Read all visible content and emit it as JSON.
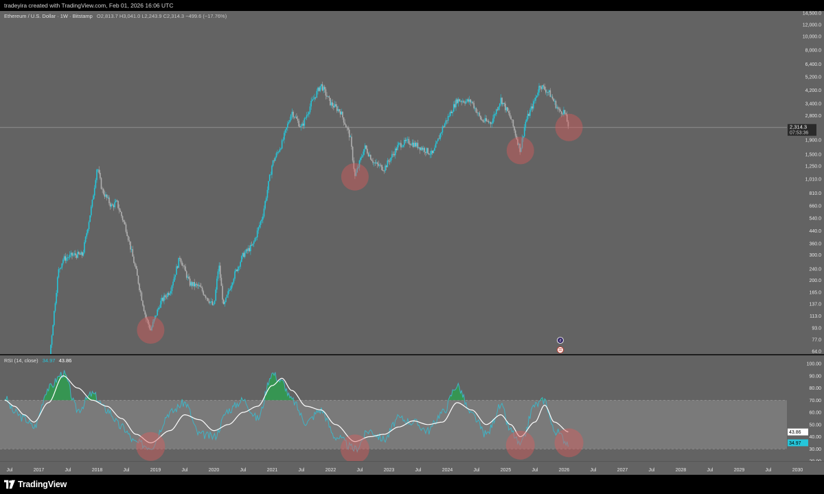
{
  "header": {
    "created_by": "tradeyira created with TradingView.com, Feb 01, 2026 16:06 UTC"
  },
  "footer": {
    "brand": "TradingView",
    "logo_icon": "tradingview-logo-icon"
  },
  "colors": {
    "background": "#636363",
    "candle_up": "#26c6da",
    "candle_down": "#b0b0b0",
    "rsi_line": "#3fb4c6",
    "rsi_ma": "#ffffff",
    "overbought_fill": "#2e9e4f",
    "band_fill": "#7a7a7a",
    "highlight_circle": "#e05a5a",
    "price_tag": "#2a2a2a",
    "rsi_tag": "#26c6da"
  },
  "main_pane": {
    "legend": {
      "symbol": "Ethereum / U.S. Dollar · 1W · Bitstamp",
      "ohlc": "O2,813.7 H3,041.0 L2,243.9 C2,314.3 −499.6 (−17.76%)"
    },
    "price_tag": {
      "price": "2,314.3",
      "countdown": "07:53:36"
    },
    "event_icons": [
      "lightning-event-icon",
      "us-flag-event-icon"
    ]
  },
  "chart_data": [
    {
      "type": "candlestick",
      "x": [
        "2016-06",
        "2016-09",
        "2016-12",
        "2017-03",
        "2017-05",
        "2017-06",
        "2017-08",
        "2017-10",
        "2017-12",
        "2018-01",
        "2018-02",
        "2018-04",
        "2018-05",
        "2018-07",
        "2018-09",
        "2018-11",
        "2018-12",
        "2019-02",
        "2019-04",
        "2019-06",
        "2019-08",
        "2019-10",
        "2020-01",
        "2020-02",
        "2020-03",
        "2020-05",
        "2020-07",
        "2020-09",
        "2020-11",
        "2021-01",
        "2021-03",
        "2021-05",
        "2021-07",
        "2021-09",
        "2021-11",
        "2022-01",
        "2022-03",
        "2022-05",
        "2022-06",
        "2022-08",
        "2022-10",
        "2022-12",
        "2023-03",
        "2023-05",
        "2023-08",
        "2023-10",
        "2023-12",
        "2024-03",
        "2024-06",
        "2024-08",
        "2024-10",
        "2024-12",
        "2025-02",
        "2025-04",
        "2025-05",
        "2025-07",
        "2025-08",
        "2025-10",
        "2025-12",
        "2026-01",
        "2026-02"
      ],
      "close": [
        14,
        11,
        8,
        50,
        230,
        280,
        300,
        300,
        700,
        1250,
        850,
        650,
        700,
        450,
        230,
        110,
        90,
        140,
        170,
        290,
        190,
        180,
        130,
        260,
        130,
        210,
        300,
        350,
        560,
        1300,
        1800,
        3000,
        2300,
        3400,
        4600,
        3400,
        3000,
        2000,
        1050,
        1700,
        1300,
        1200,
        1750,
        1850,
        1650,
        1500,
        2300,
        3600,
        3500,
        2600,
        2500,
        3650,
        2700,
        1600,
        2500,
        3600,
        4600,
        4000,
        3000,
        3000,
        2314.3
      ],
      "y_axis": {
        "scale": "log",
        "ticks": [
          "14,500.0",
          "12,000.0",
          "10,000.0",
          "8,000.0",
          "6,400.0",
          "5,200.0",
          "4,200.0",
          "3,400.0",
          "2,800.0",
          "1,900.0",
          "1,500.0",
          "1,250.0",
          "1,010.0",
          "810.0",
          "660.0",
          "540.0",
          "440.0",
          "360.0",
          "300.0",
          "240.0",
          "200.0",
          "165.0",
          "137.0",
          "113.0",
          "93.0",
          "77.0",
          "64.0"
        ]
      },
      "highlight_lows": [
        "2018-12",
        "2022-06",
        "2025-04",
        "2026-02"
      ]
    },
    {
      "type": "line",
      "title": "RSI (14, close)",
      "legend_values": [
        "34.97",
        "43.86"
      ],
      "x": [
        "2016-06",
        "2016-08",
        "2016-10",
        "2016-12",
        "2017-03",
        "2017-06",
        "2017-09",
        "2017-12",
        "2018-03",
        "2018-06",
        "2018-09",
        "2018-12",
        "2019-04",
        "2019-07",
        "2019-10",
        "2020-01",
        "2020-04",
        "2020-07",
        "2020-10",
        "2021-01",
        "2021-03",
        "2021-05",
        "2021-08",
        "2021-11",
        "2022-02",
        "2022-06",
        "2022-09",
        "2022-12",
        "2023-03",
        "2023-06",
        "2023-09",
        "2023-12",
        "2024-03",
        "2024-06",
        "2024-09",
        "2024-12",
        "2025-02",
        "2025-04",
        "2025-07",
        "2025-09",
        "2025-11",
        "2026-02"
      ],
      "series": [
        {
          "values": [
            72,
            60,
            55,
            48,
            80,
            92,
            62,
            75,
            62,
            48,
            35,
            32,
            60,
            68,
            42,
            40,
            62,
            70,
            55,
            92,
            85,
            70,
            52,
            62,
            40,
            30,
            45,
            38,
            55,
            52,
            45,
            60,
            82,
            58,
            42,
            65,
            45,
            33,
            66,
            70,
            45,
            34.97
          ]
        },
        {
          "values": [
            70,
            65,
            58,
            52,
            68,
            90,
            80,
            70,
            65,
            55,
            42,
            35,
            45,
            58,
            54,
            45,
            50,
            60,
            65,
            82,
            88,
            78,
            65,
            62,
            50,
            36,
            40,
            42,
            48,
            53,
            50,
            52,
            68,
            62,
            50,
            58,
            50,
            40,
            52,
            66,
            52,
            43.86
          ]
        }
      ],
      "y_axis": {
        "ticks": [
          "100.00",
          "90.00",
          "80.00",
          "70.00",
          "60.00",
          "50.00",
          "40.00",
          "30.00",
          "20.00"
        ],
        "ylim": [
          20,
          100
        ]
      },
      "bands": {
        "overbought": 70,
        "oversold": 30
      },
      "highlight_lows": [
        "2018-12",
        "2022-06",
        "2025-04",
        "2026-02"
      ]
    }
  ],
  "x_axis": {
    "ticks": [
      "Jul",
      "2017",
      "Jul",
      "2018",
      "Jul",
      "2019",
      "Jul",
      "2020",
      "Jul",
      "2021",
      "Jul",
      "2022",
      "Jul",
      "2023",
      "Jul",
      "2024",
      "Jul",
      "2025",
      "Jul",
      "2026",
      "Jul",
      "2027",
      "Jul",
      "2028",
      "Jul",
      "2029",
      "Jul",
      "2030"
    ]
  }
}
